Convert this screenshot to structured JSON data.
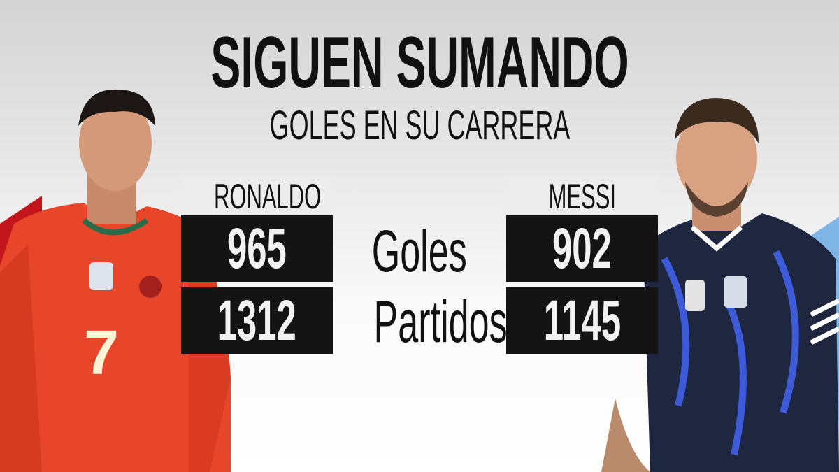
{
  "header": {
    "title": "SIGUEN SUMANDO",
    "subtitle": "GOLES EN SU CARRERA"
  },
  "stats": {
    "labels": {
      "goals": "Goles",
      "matches": "Partidos"
    },
    "ronaldo": {
      "name": "RONALDO",
      "goals": "965",
      "matches": "1312",
      "shirt_color": "#e8462a",
      "accent": "#c3161c"
    },
    "messi": {
      "name": "MESSI",
      "goals": "902",
      "matches": "1145",
      "shirt_color": "#1e2640",
      "accent": "#6aa9e0"
    }
  }
}
